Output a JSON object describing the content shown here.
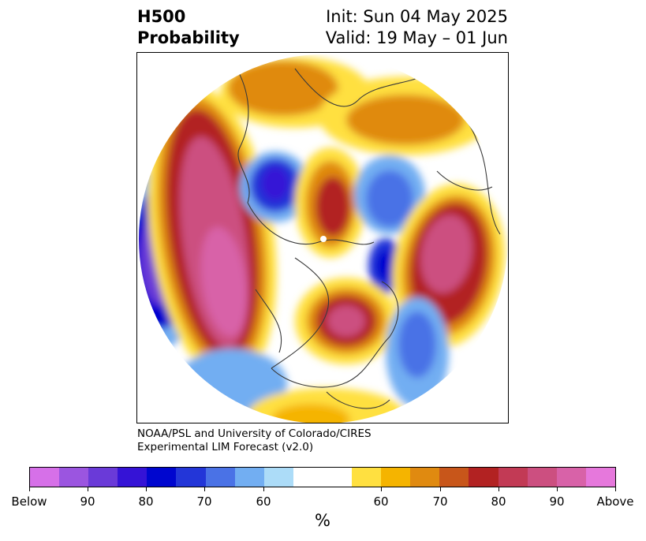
{
  "header": {
    "title_line1": "H500",
    "title_line2": "Probability",
    "init_line": "Init: Sun 04 May 2025",
    "valid_line": "Valid: 19 May – 01 Jun"
  },
  "credit": {
    "line1": "NOAA/PSL and University of Colorado/CIRES",
    "line2": "Experimental LIM Forecast (v2.0)"
  },
  "colorbar": {
    "unit_label": "%",
    "colors": [
      "#d670e8",
      "#9b55e0",
      "#6a3ad8",
      "#3513d6",
      "#0006cf",
      "#2336d8",
      "#4a72e6",
      "#72aef2",
      "#acdcf8",
      "#ffffff",
      "#ffffff",
      "#ffe040",
      "#f5b400",
      "#e08a10",
      "#c8561a",
      "#b22222",
      "#c23a55",
      "#cc4f80",
      "#d862a8",
      "#e678dc"
    ],
    "tick_labels": [
      "Below",
      "90",
      "80",
      "70",
      "60",
      "60",
      "70",
      "80",
      "90",
      "Above"
    ]
  },
  "colors": {
    "below_strong": "#0006cf",
    "above_strong": "#b22222",
    "coastline": "#3a3a3a"
  }
}
